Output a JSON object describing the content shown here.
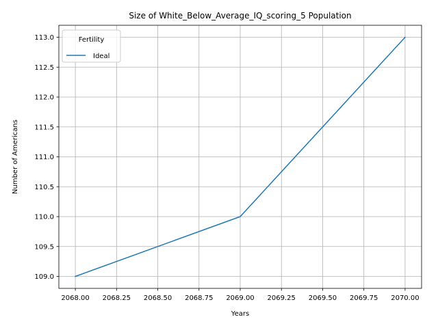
{
  "chart_data": {
    "type": "line",
    "title": "Size of White_Below_Average_IQ_scoring_5 Population",
    "xlabel": "Years",
    "ylabel": "Number of Americans",
    "x": [
      2068,
      2069,
      2070
    ],
    "series": [
      {
        "name": "Ideal",
        "values": [
          109,
          110,
          113
        ],
        "color": "#1f77b4"
      }
    ],
    "xlim": [
      2067.9,
      2070.1
    ],
    "ylim": [
      108.8,
      113.2
    ],
    "xticks": [
      2068.0,
      2068.25,
      2068.5,
      2068.75,
      2069.0,
      2069.25,
      2069.5,
      2069.75,
      2070.0
    ],
    "xtick_labels": [
      "2068.00",
      "2068.25",
      "2068.50",
      "2068.75",
      "2069.00",
      "2069.25",
      "2069.50",
      "2069.75",
      "2070.00"
    ],
    "yticks": [
      109.0,
      109.5,
      110.0,
      110.5,
      111.0,
      111.5,
      112.0,
      112.5,
      113.0
    ],
    "ytick_labels": [
      "109.0",
      "109.5",
      "110.0",
      "110.5",
      "111.0",
      "111.5",
      "112.0",
      "112.5",
      "113.0"
    ],
    "grid": true,
    "legend": {
      "title": "Fertility",
      "placement": "top-left"
    }
  }
}
